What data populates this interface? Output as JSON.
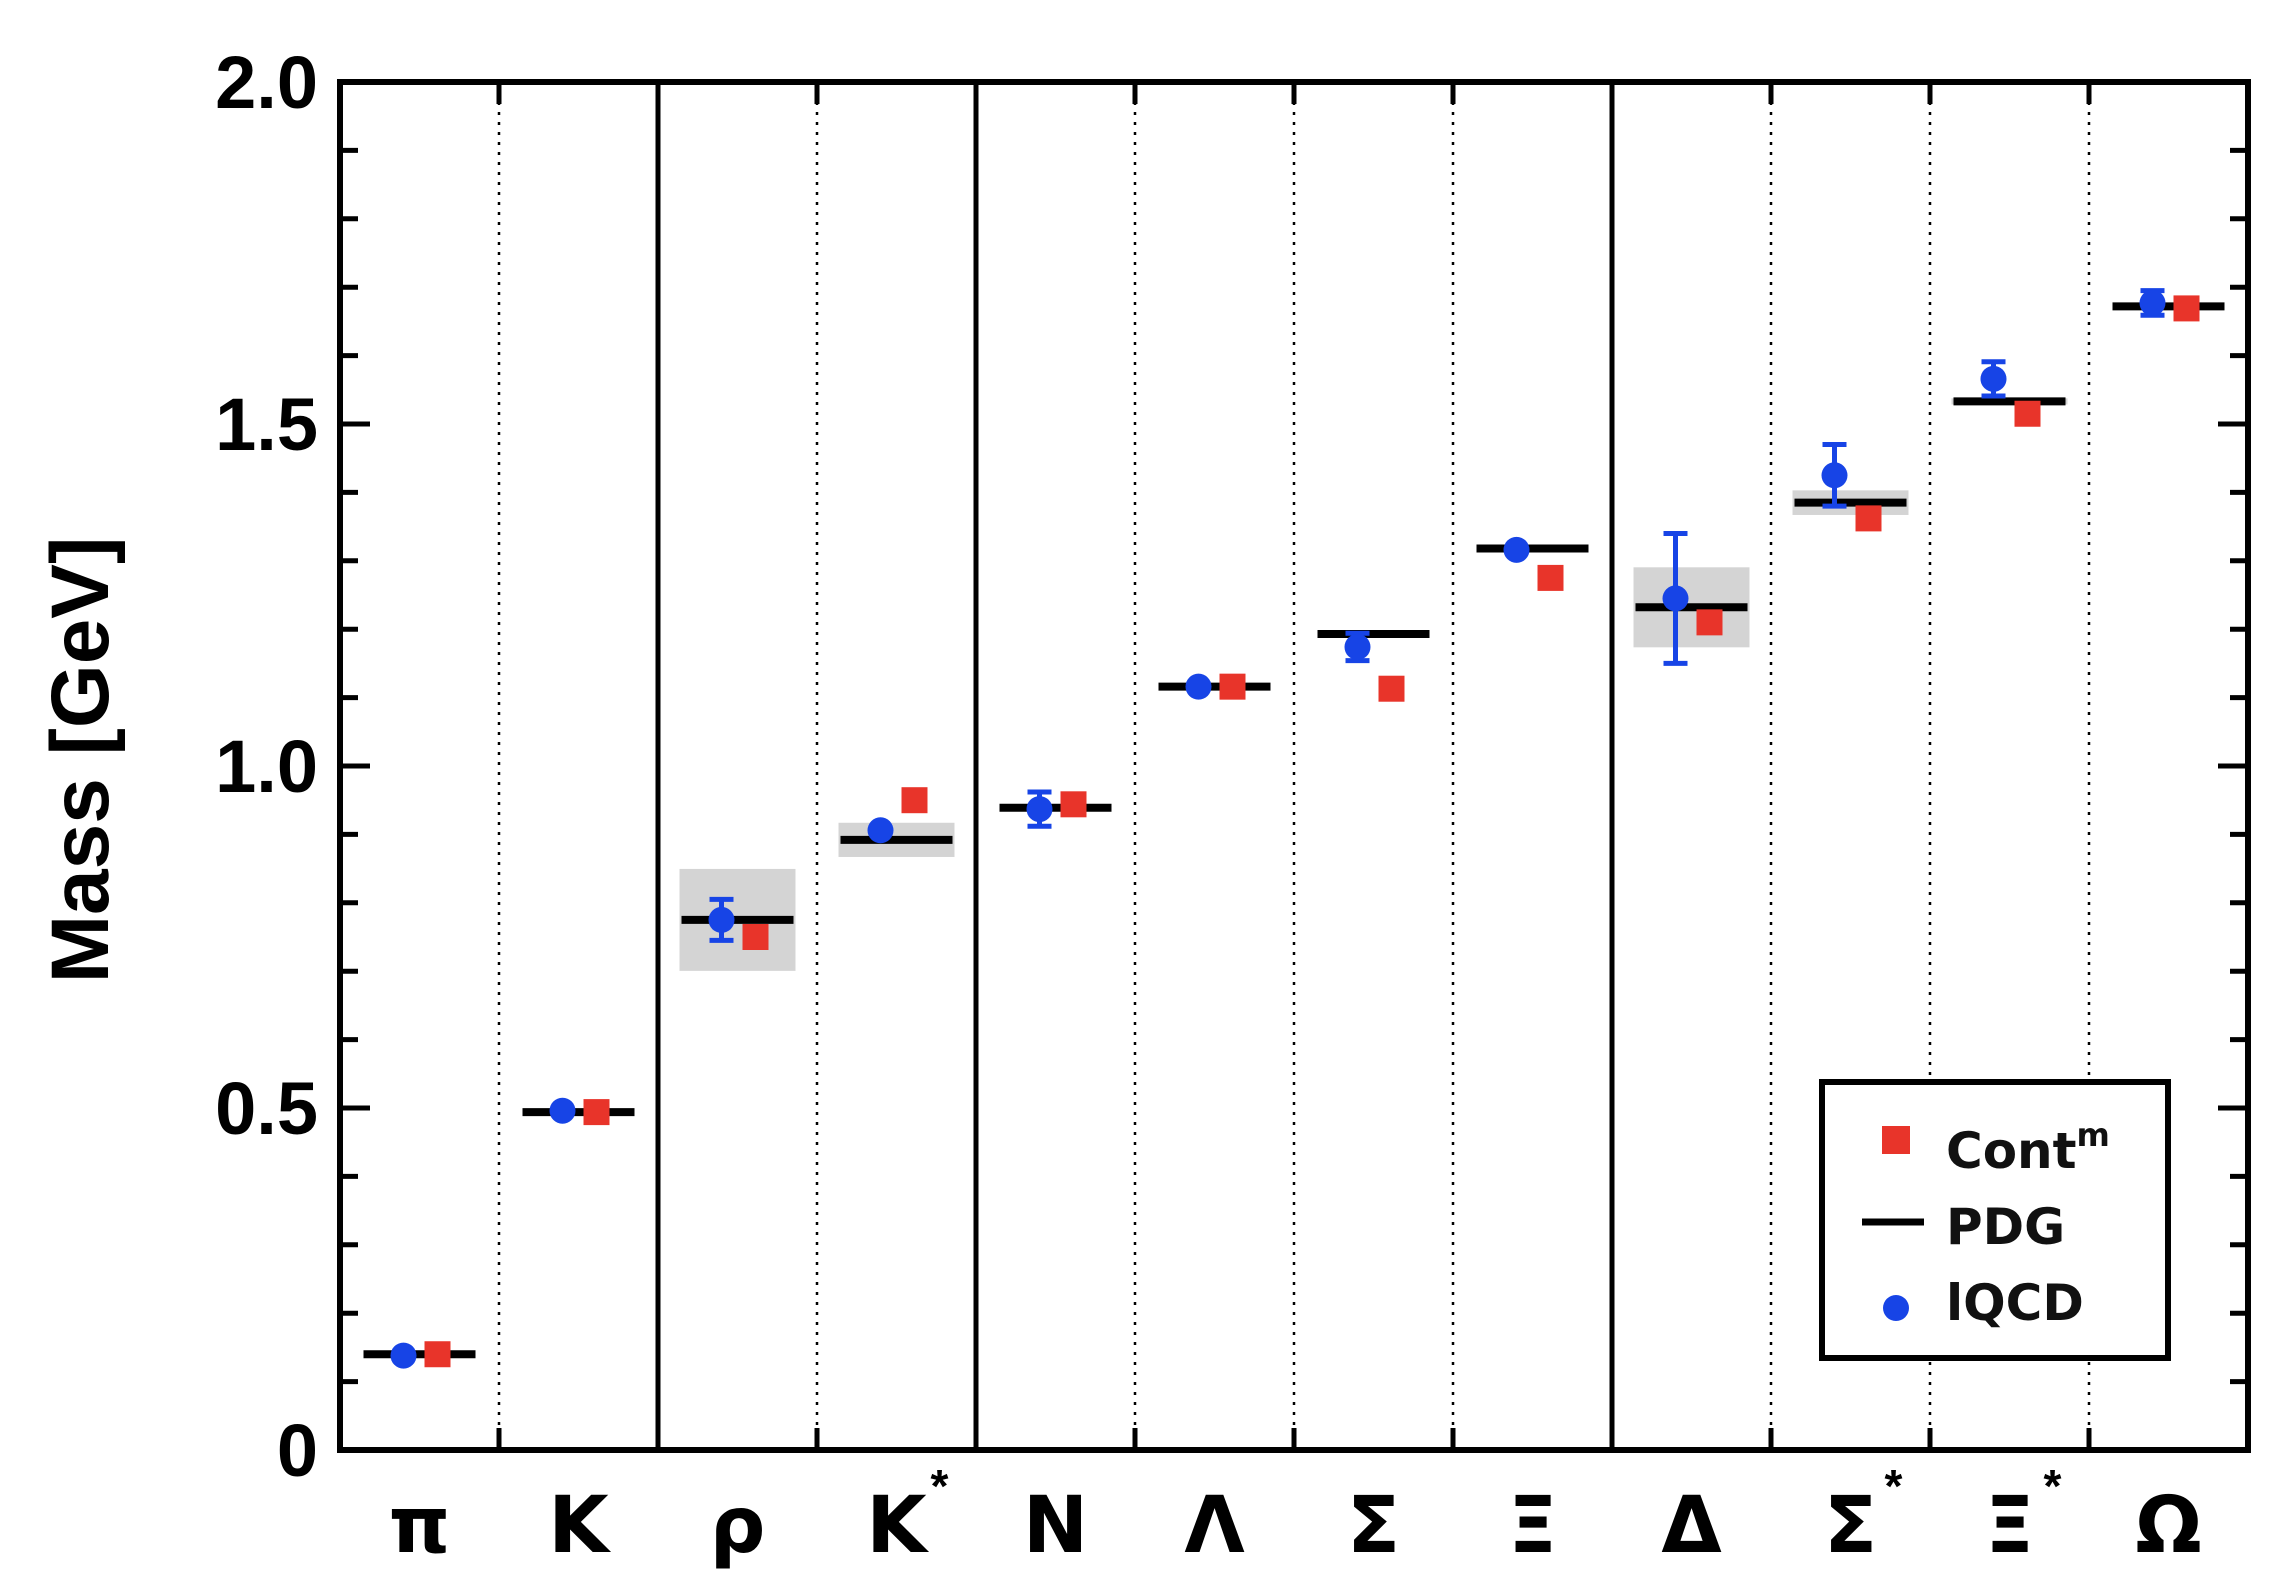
{
  "chart_data": {
    "type": "scatter",
    "ylabel": "Mass [GeV]",
    "xlabel": "",
    "ylim": [
      0,
      2.0
    ],
    "yticks": [
      {
        "value": 0,
        "label": "0"
      },
      {
        "value": 0.5,
        "label": "0.5"
      },
      {
        "value": 1.0,
        "label": "1.0"
      },
      {
        "value": 1.5,
        "label": "1.5"
      },
      {
        "value": 2.0,
        "label": "2.0"
      }
    ],
    "categories": [
      {
        "symbol": "π",
        "star": ""
      },
      {
        "symbol": "K",
        "star": ""
      },
      {
        "symbol": "ρ",
        "star": ""
      },
      {
        "symbol": "K",
        "star": "*"
      },
      {
        "symbol": "N",
        "star": ""
      },
      {
        "symbol": "Λ",
        "star": ""
      },
      {
        "symbol": "Σ",
        "star": ""
      },
      {
        "symbol": "Ξ",
        "star": ""
      },
      {
        "symbol": "Δ",
        "star": ""
      },
      {
        "symbol": "Σ",
        "star": "*"
      },
      {
        "symbol": "Ξ",
        "star": "*"
      },
      {
        "symbol": "Ω",
        "star": ""
      }
    ],
    "group_boundaries_after": [
      1,
      3,
      7
    ],
    "series": [
      {
        "name": "PDG",
        "marker": "line",
        "color": "#000000",
        "values": [
          0.14,
          0.494,
          0.775,
          0.892,
          0.939,
          1.116,
          1.193,
          1.318,
          1.232,
          1.385,
          1.533,
          1.672
        ],
        "width_band": [
          0,
          0,
          0.149,
          0.05,
          0,
          0,
          0,
          0,
          0.117,
          0.036,
          0.009,
          0
        ]
      },
      {
        "name": "lQCD",
        "marker": "circle",
        "color": "#1744e6",
        "values": [
          0.138,
          0.496,
          0.775,
          0.906,
          0.937,
          1.116,
          1.174,
          1.316,
          1.245,
          1.425,
          1.566,
          1.677
        ],
        "errors": [
          0,
          0,
          0.03,
          0,
          0.025,
          0,
          0.02,
          0,
          0.095,
          0.045,
          0.025,
          0.018
        ]
      },
      {
        "name": "Cont",
        "name_superscript": "m",
        "marker": "square",
        "color": "#e8342a",
        "values": [
          0.14,
          0.494,
          0.75,
          0.95,
          0.944,
          1.116,
          1.113,
          1.275,
          1.21,
          1.362,
          1.515,
          1.669
        ]
      }
    ],
    "legend": {
      "placement": "bottom-right",
      "entries": [
        {
          "label": "Cont",
          "sup": "m",
          "marker": "square",
          "color": "#e8342a"
        },
        {
          "label": "PDG",
          "sup": "",
          "marker": "line",
          "color": "#000000"
        },
        {
          "label": "lQCD",
          "sup": "",
          "marker": "circle",
          "color": "#1744e6"
        }
      ]
    },
    "colors": {
      "band": "#d4d4d4",
      "axis": "#000000"
    }
  }
}
